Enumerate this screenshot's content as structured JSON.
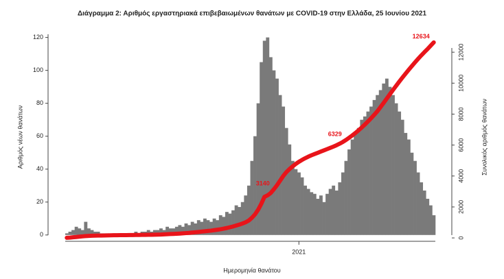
{
  "chart_data": {
    "type": "bar",
    "title": "Διάγραμμα 2: Αριθμός εργαστηριακά επιβεβαιωμένων θανάτων με COVID-19 στην Ελλάδα, 25 Ιουνίου 2021",
    "xlabel": "Ημερομηνία θανάτου",
    "ylabel": "Αριθμός νέων θανάτων",
    "y2label": "Συνολικός αριθμός θανάτων",
    "categories": [
      null,
      null,
      null,
      null,
      null,
      null,
      null,
      null,
      null,
      null,
      null,
      null,
      null,
      null,
      null,
      null,
      null,
      null,
      null,
      null,
      null,
      null,
      null,
      null,
      null,
      null,
      null,
      null,
      null,
      null,
      null,
      null,
      null,
      null,
      null,
      null,
      null,
      null,
      null,
      null,
      null,
      null,
      null,
      null,
      null,
      null,
      null,
      null,
      null,
      null,
      null,
      null,
      null,
      null,
      null,
      null,
      null,
      null,
      null,
      null,
      null,
      null,
      null,
      null,
      null,
      null,
      null,
      null,
      null,
      null,
      null,
      null,
      null,
      null,
      "2021",
      null,
      null,
      null,
      null,
      null,
      null,
      null,
      null,
      null,
      null,
      null,
      null,
      null,
      null,
      null,
      null,
      null,
      null,
      null,
      null,
      null,
      null,
      null,
      null,
      null,
      null,
      null,
      null,
      null,
      null,
      null,
      null,
      null,
      null,
      null,
      null,
      null,
      null,
      null,
      null,
      null,
      null,
      null
    ],
    "ylim": [
      -3,
      124
    ],
    "yticks": [
      0,
      20,
      40,
      60,
      80,
      100,
      120
    ],
    "y2lim": [
      -130,
      13380
    ],
    "y2ticks": [
      0,
      2000,
      4000,
      6000,
      8000,
      10000,
      12000
    ],
    "series": [
      {
        "type": "bar",
        "color": "#7a7a7a",
        "values": [
          1,
          2,
          3,
          5,
          4,
          3,
          8,
          4,
          3,
          2,
          2,
          1,
          1,
          1,
          0,
          1,
          1,
          0,
          1,
          0,
          1,
          1,
          2,
          1,
          2,
          2,
          3,
          2,
          3,
          3,
          4,
          3,
          5,
          4,
          4,
          5,
          6,
          5,
          7,
          6,
          8,
          7,
          9,
          8,
          10,
          9,
          8,
          10,
          9,
          12,
          11,
          14,
          13,
          15,
          18,
          17,
          20,
          24,
          30,
          45,
          60,
          80,
          105,
          118,
          120,
          108,
          100,
          95,
          85,
          78,
          65,
          55,
          45,
          40,
          38,
          35,
          30,
          28,
          26,
          25,
          22,
          24,
          20,
          25,
          28,
          30,
          27,
          32,
          38,
          45,
          52,
          58,
          62,
          65,
          70,
          72,
          75,
          78,
          82,
          85,
          88,
          92,
          95,
          90,
          85,
          80,
          75,
          70,
          62,
          58,
          50,
          45,
          38,
          32,
          27,
          22,
          18,
          12
        ]
      },
      {
        "type": "line",
        "axis": "y2",
        "color": "#e8141a",
        "values": [
          10,
          20,
          40,
          60,
          80,
          100,
          120,
          130,
          140,
          145,
          150,
          155,
          160,
          165,
          170,
          172,
          175,
          178,
          180,
          182,
          185,
          188,
          190,
          192,
          195,
          198,
          200,
          205,
          210,
          215,
          220,
          230,
          240,
          250,
          260,
          270,
          280,
          295,
          310,
          325,
          345,
          365,
          385,
          410,
          430,
          450,
          470,
          500,
          530,
          560,
          600,
          640,
          690,
          740,
          800,
          860,
          930,
          1010,
          1120,
          1300,
          1520,
          1820,
          2200,
          2650,
          2750,
          2900,
          3140,
          3400,
          3700,
          4000,
          4250,
          4450,
          4620,
          4780,
          4920,
          5040,
          5150,
          5250,
          5340,
          5420,
          5500,
          5580,
          5660,
          5740,
          5820,
          5900,
          5990,
          6090,
          6200,
          6329,
          6470,
          6620,
          6780,
          6950,
          7130,
          7320,
          7520,
          7730,
          7950,
          8180,
          8450,
          8720,
          9000,
          9280,
          9560,
          9830,
          10100,
          10360,
          10610,
          10860,
          11100,
          11340,
          11570,
          11790,
          12000,
          12200,
          12420,
          12634
        ],
        "value_labels": [
          null,
          null,
          null,
          null,
          null,
          null,
          null,
          null,
          null,
          null,
          null,
          null,
          null,
          null,
          null,
          null,
          null,
          null,
          null,
          null,
          null,
          null,
          null,
          null,
          null,
          null,
          null,
          null,
          null,
          null,
          null,
          null,
          null,
          null,
          null,
          null,
          null,
          null,
          null,
          null,
          null,
          null,
          null,
          null,
          null,
          null,
          null,
          null,
          null,
          null,
          null,
          null,
          null,
          null,
          null,
          null,
          null,
          null,
          null,
          null,
          null,
          null,
          null,
          null,
          null,
          null,
          "3140",
          null,
          null,
          null,
          null,
          null,
          null,
          null,
          null,
          null,
          null,
          null,
          null,
          null,
          null,
          null,
          null,
          null,
          null,
          null,
          null,
          null,
          null,
          "6329",
          null,
          null,
          null,
          null,
          null,
          null,
          null,
          null,
          null,
          null,
          null,
          null,
          null,
          null,
          null,
          null,
          null,
          null,
          null,
          null,
          null,
          null,
          null,
          null,
          null,
          null,
          null,
          "12634"
        ]
      }
    ]
  }
}
